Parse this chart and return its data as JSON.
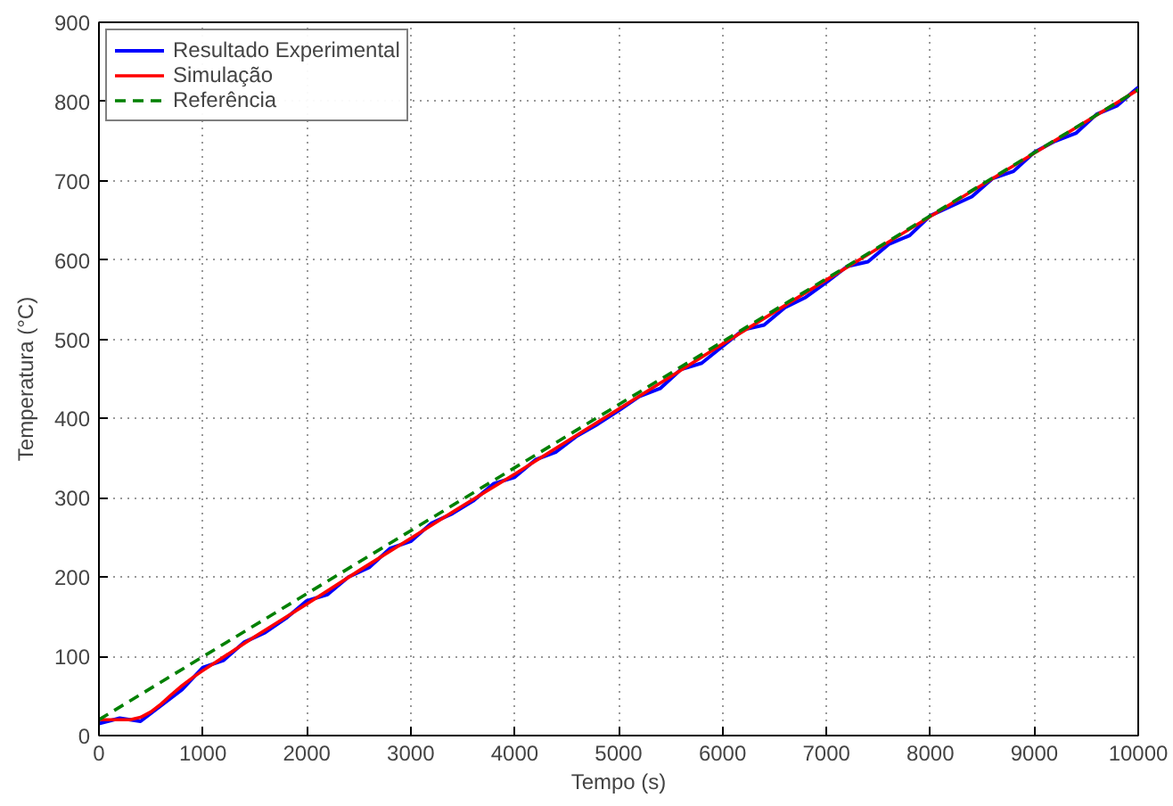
{
  "chart_data": {
    "type": "line",
    "xlabel": "Tempo (s)",
    "ylabel": "Temperatura (°C)",
    "xlim": [
      0,
      10000
    ],
    "ylim": [
      0,
      900
    ],
    "xticks": [
      0,
      1000,
      2000,
      3000,
      4000,
      5000,
      6000,
      7000,
      8000,
      9000,
      10000
    ],
    "yticks": [
      0,
      100,
      200,
      300,
      400,
      500,
      600,
      700,
      800,
      900
    ],
    "grid": true,
    "legend": "top left",
    "series": [
      {
        "name": "Resultado Experimental",
        "color": "#0000ff",
        "line_style": "solid",
        "x": [
          0,
          200,
          400,
          600,
          800,
          1000,
          1200,
          1400,
          1600,
          1800,
          2000,
          2200,
          2400,
          2600,
          2800,
          3000,
          3200,
          3400,
          3600,
          3800,
          4000,
          4200,
          4400,
          4600,
          4800,
          5000,
          5200,
          5400,
          5600,
          5800,
          6000,
          6200,
          6400,
          6600,
          6800,
          7000,
          7200,
          7400,
          7600,
          7800,
          8000,
          8200,
          8400,
          8600,
          8800,
          9000,
          9200,
          9400,
          9600,
          9800,
          10000
        ],
        "values": [
          15,
          22,
          18,
          38,
          58,
          86,
          95,
          118,
          130,
          148,
          170,
          178,
          200,
          212,
          236,
          245,
          268,
          280,
          296,
          318,
          326,
          348,
          358,
          378,
          393,
          410,
          428,
          438,
          462,
          470,
          491,
          512,
          518,
          540,
          553,
          572,
          592,
          598,
          620,
          631,
          656,
          668,
          680,
          703,
          712,
          736,
          750,
          760,
          784,
          795,
          818
        ]
      },
      {
        "name": "Simulação",
        "color": "#ff0000",
        "line_style": "solid",
        "x": [
          0,
          200,
          300,
          400,
          500,
          600,
          700,
          800,
          900,
          1000,
          1500,
          2000,
          2500,
          3000,
          3500,
          4000,
          5000,
          6000,
          7000,
          8000,
          9000,
          10000
        ],
        "values": [
          20,
          20,
          20,
          23,
          30,
          40,
          52,
          63,
          73,
          82,
          125,
          166,
          208,
          249,
          290,
          330,
          412,
          494,
          575,
          655,
          735,
          815
        ]
      },
      {
        "name": "Referência",
        "color": "#008000",
        "line_style": "dashed",
        "x": [
          0,
          10000
        ],
        "values": [
          20,
          815
        ]
      }
    ]
  }
}
